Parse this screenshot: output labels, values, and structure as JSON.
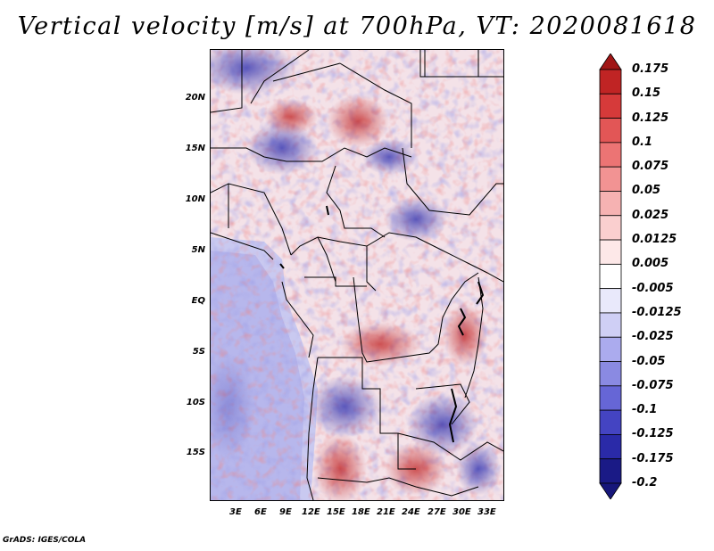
{
  "title": "Vertical velocity [m/s] at 700hPa, VT: 2020081618",
  "footer": "GrADS: IGES/COLA",
  "lat_labels": [
    "20N",
    "15N",
    "10N",
    "5N",
    "EQ",
    "5S",
    "10S",
    "15S"
  ],
  "lon_labels": [
    "3E",
    "6E",
    "9E",
    "12E",
    "15E",
    "18E",
    "21E",
    "24E",
    "27E",
    "30E",
    "33E"
  ],
  "colorbar": {
    "labels": [
      "0.175",
      "0.15",
      "0.125",
      "0.1",
      "0.075",
      "0.05",
      "0.025",
      "0.0125",
      "0.005",
      "-0.005",
      "-0.0125",
      "-0.025",
      "-0.05",
      "-0.075",
      "-0.1",
      "-0.125",
      "-0.175",
      "-0.2"
    ],
    "colors": [
      "#a01616",
      "#c02424",
      "#d63a3a",
      "#e25656",
      "#ec7474",
      "#f29393",
      "#f6b2b2",
      "#facfcf",
      "#fde8e8",
      "#ffffff",
      "#e9e9fb",
      "#cfcff5",
      "#ababee",
      "#8a8ae2",
      "#6666d6",
      "#4444c2",
      "#2a2aa8",
      "#1a1a86",
      "#16167a"
    ]
  }
}
